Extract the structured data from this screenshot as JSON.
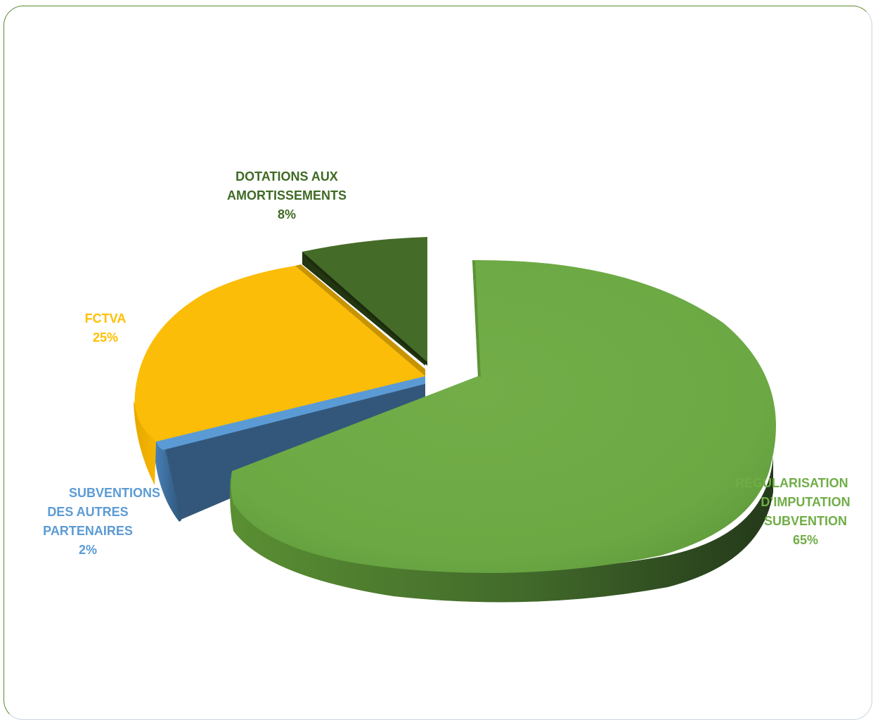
{
  "chart_data": {
    "type": "pie",
    "style": "3d-exploded",
    "slices": [
      {
        "key": "reg",
        "label_lines": [
          "RÉGULARISATION",
          "D’IMPUTATION",
          "SUBVENTION"
        ],
        "value_label": "65%",
        "value": 65,
        "color": "#70ad47"
      },
      {
        "key": "sub",
        "label_lines": [
          "SUBVENTIONS",
          "DES AUTRES",
          "PARTENAIRES"
        ],
        "value_label": "2%",
        "value": 2,
        "color": "#5b9bd5"
      },
      {
        "key": "fct",
        "label_lines": [
          "FCTVA"
        ],
        "value_label": "25%",
        "value": 25,
        "color": "#ffc000"
      },
      {
        "key": "dot",
        "label_lines": [
          "DOTATIONS AUX",
          "AMORTISSEMENTS"
        ],
        "value_label": "8%",
        "value": 8,
        "color": "#456b28"
      }
    ],
    "label_colors": {
      "reg": "#70ad47",
      "sub": "#5b9bd5",
      "fct": "#ffc000",
      "dot": "#3f6a24"
    }
  }
}
